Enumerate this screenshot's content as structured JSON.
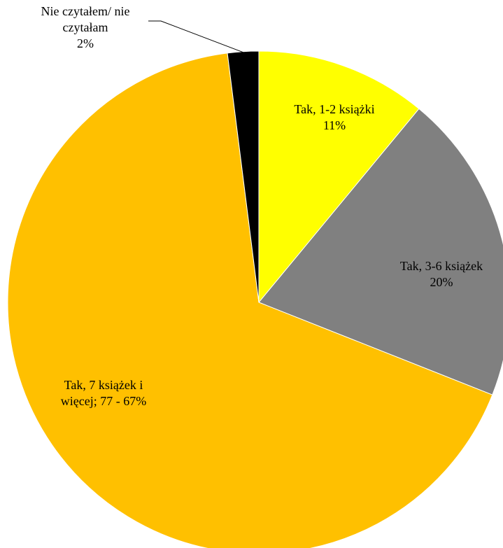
{
  "chart_data": {
    "type": "pie",
    "start_angle_deg": 0,
    "direction": "clockwise",
    "slices": [
      {
        "label_lines": [
          "Tak, 1-2 książki",
          "11%"
        ],
        "percent": 11,
        "color": "#FFFF00"
      },
      {
        "label_lines": [
          "Tak, 3-6 książek",
          "20%"
        ],
        "percent": 20,
        "color": "#808080"
      },
      {
        "label_lines": [
          "Tak, 7 książek i",
          "więcej; 77 - 67%"
        ],
        "percent": 67,
        "color": "#FFC000"
      },
      {
        "label_lines": [
          "Nie czytałem/ nie",
          "czytałam",
          "2%"
        ],
        "percent": 2,
        "color": "#000000",
        "leader_line": true
      }
    ],
    "legend": "none"
  }
}
